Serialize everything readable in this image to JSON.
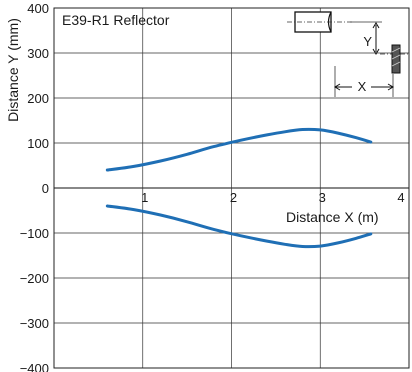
{
  "chart_data": {
    "type": "line",
    "title": "E39-R1 Reflector",
    "xlabel": "Distance X (m)",
    "ylabel": "Distance Y (mm)",
    "xlim": [
      0,
      4
    ],
    "ylim": [
      -400,
      400
    ],
    "x_ticks": [
      "1",
      "2",
      "3",
      "4"
    ],
    "y_ticks": [
      "400",
      "300",
      "200",
      "100",
      "0",
      "−100",
      "−200",
      "−300",
      "−400"
    ],
    "grid": true,
    "series_color": "#1f6fb5",
    "series": [
      {
        "x": [
          0.6,
          0.9,
          1.2,
          1.5,
          1.8,
          2.1,
          2.4,
          2.6,
          2.8,
          3.0,
          3.2,
          3.4,
          3.57
        ],
        "values": [
          40,
          48,
          60,
          75,
          92,
          106,
          118,
          125,
          130,
          129,
          122,
          112,
          102
        ]
      },
      {
        "x": [
          0.6,
          0.9,
          1.2,
          1.5,
          1.8,
          2.1,
          2.4,
          2.6,
          2.8,
          3.0,
          3.2,
          3.4,
          3.57
        ],
        "values": [
          -40,
          -48,
          -60,
          -75,
          -92,
          -106,
          -118,
          -125,
          -130,
          -129,
          -122,
          -112,
          -102
        ]
      }
    ],
    "diagram": {
      "y_label": "Y",
      "x_label": "X"
    }
  }
}
